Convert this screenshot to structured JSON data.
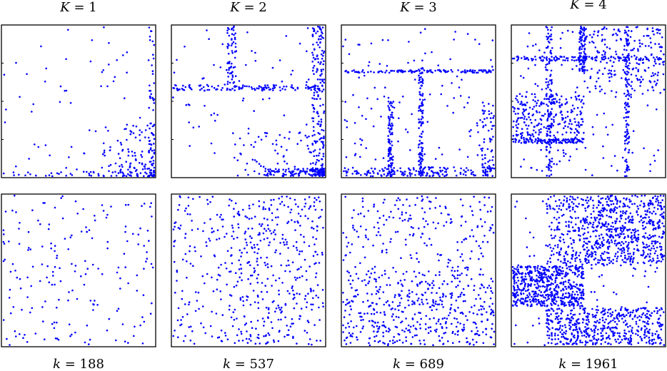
{
  "figure": {
    "top_labels": [
      {
        "var": "K",
        "eq": " = 1"
      },
      {
        "var": "K",
        "eq": " = 2"
      },
      {
        "var": "K",
        "eq": " = 3"
      },
      {
        "var": "K",
        "eq": " = 4"
      }
    ],
    "bottom_labels": [
      {
        "var": "k",
        "eq": " = 188"
      },
      {
        "var": "k",
        "eq": " = 537"
      },
      {
        "var": "k",
        "eq": " = 689"
      },
      {
        "var": "k",
        "eq": " = 1961"
      }
    ],
    "point_color": "#0000ff"
  },
  "chart_data": [
    {
      "type": "scatter",
      "row": "top",
      "K": 1,
      "pattern": "corner-concentrated",
      "blocks": [
        {
          "x": [
            0.0,
            1.0
          ],
          "y": [
            0.0,
            1.0
          ],
          "density": "sparse, dense near bottom-right"
        }
      ]
    },
    {
      "type": "scatter",
      "row": "top",
      "K": 2,
      "pattern": "2-block structure",
      "blocks": [
        {
          "x": [
            0.35,
            0.4
          ],
          "y": [
            0.6,
            1.0
          ]
        },
        {
          "x": [
            0.0,
            1.0
          ],
          "y": [
            0.58,
            0.62
          ]
        },
        {
          "x": [
            0.9,
            1.0
          ],
          "y": [
            0.0,
            1.0
          ]
        }
      ]
    },
    {
      "type": "scatter",
      "row": "top",
      "K": 3,
      "pattern": "3-block structure",
      "blocks": [
        {
          "x": [
            0.3,
            0.33
          ],
          "y": [
            0.0,
            0.5
          ]
        },
        {
          "x": [
            0.5,
            0.53
          ],
          "y": [
            0.0,
            0.72
          ]
        },
        {
          "x": [
            0.0,
            1.0
          ],
          "y": [
            0.69,
            0.72
          ]
        }
      ]
    },
    {
      "type": "scatter",
      "row": "top",
      "K": 4,
      "pattern": "4-block structure",
      "blocks": [
        {
          "x": [
            0.0,
            0.47
          ],
          "y": [
            0.0,
            0.47
          ]
        },
        {
          "x": [
            0.47,
            1.0
          ],
          "y": [
            0.47,
            1.0
          ]
        }
      ]
    },
    {
      "type": "scatter",
      "row": "bottom",
      "k": 188,
      "pattern": "uniform"
    },
    {
      "type": "scatter",
      "row": "bottom",
      "k": 537,
      "pattern": "2-block",
      "blocks": [
        {
          "x": [
            0.42,
            1.0
          ],
          "y": [
            0.0,
            1.0
          ],
          "density": "dense"
        },
        {
          "x": [
            0.0,
            0.42
          ],
          "y": [
            0.0,
            1.0
          ],
          "density": "sparse"
        }
      ]
    },
    {
      "type": "scatter",
      "row": "bottom",
      "k": 689,
      "pattern": "3-block",
      "blocks": [
        {
          "x": [
            0.0,
            1.0
          ],
          "y": [
            0.0,
            0.5
          ],
          "density": "dense"
        },
        {
          "x": [
            0.0,
            1.0
          ],
          "y": [
            0.5,
            1.0
          ],
          "density": "sparse"
        }
      ]
    },
    {
      "type": "scatter",
      "row": "bottom",
      "k": 1961,
      "pattern": "4-block",
      "blocks": [
        {
          "x": [
            0.0,
            0.47
          ],
          "y": [
            0.28,
            0.55
          ],
          "density": "very dense"
        },
        {
          "x": [
            0.22,
            1.0
          ],
          "y": [
            0.0,
            0.28
          ],
          "density": "dense"
        },
        {
          "x": [
            0.47,
            1.0
          ],
          "y": [
            0.55,
            1.0
          ],
          "density": "dense"
        }
      ]
    }
  ]
}
